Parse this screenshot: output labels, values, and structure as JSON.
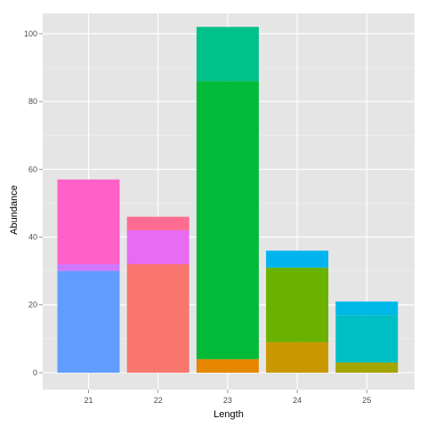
{
  "chart_data": {
    "type": "bar",
    "stacked": true,
    "title": "",
    "xlabel": "Length",
    "ylabel": "Abundance",
    "categories": [
      "21",
      "22",
      "23",
      "24",
      "25"
    ],
    "ylim": [
      -5,
      106
    ],
    "yticks": [
      0,
      20,
      40,
      60,
      80,
      100
    ],
    "grid": true,
    "legend": "none",
    "background": "#e5e5e5",
    "stacks": [
      {
        "category": "21",
        "segments": [
          {
            "value": 30,
            "color": "#619cff"
          },
          {
            "value": 2,
            "color": "#cf78ff"
          },
          {
            "value": 25,
            "color": "#ff61c9"
          }
        ]
      },
      {
        "category": "22",
        "segments": [
          {
            "value": 32,
            "color": "#f8766d"
          },
          {
            "value": 10,
            "color": "#e76bf3"
          },
          {
            "value": 4,
            "color": "#ff6c91"
          }
        ]
      },
      {
        "category": "23",
        "segments": [
          {
            "value": 4,
            "color": "#e58700"
          },
          {
            "value": 82,
            "color": "#00ba38"
          },
          {
            "value": 16,
            "color": "#00c08b"
          }
        ]
      },
      {
        "category": "24",
        "segments": [
          {
            "value": 9,
            "color": "#c99800"
          },
          {
            "value": 22,
            "color": "#6bb100"
          },
          {
            "value": 5,
            "color": "#00b4ef"
          }
        ]
      },
      {
        "category": "25",
        "segments": [
          {
            "value": 3,
            "color": "#a3a500"
          },
          {
            "value": 14,
            "color": "#00bfc4"
          },
          {
            "value": 4,
            "color": "#00b8e7"
          }
        ]
      }
    ]
  }
}
